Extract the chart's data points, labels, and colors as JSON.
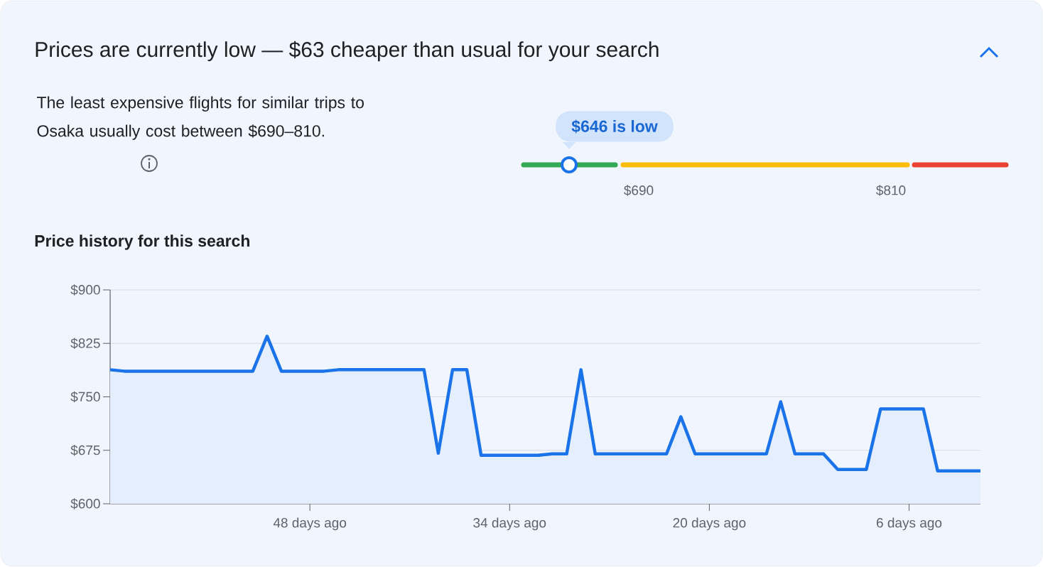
{
  "chart_data": [
    {
      "type": "other",
      "title": "Prices are currently low — $63 cheaper than usual for your search",
      "annotations": [
        "The least expensive flights for similar trips to Osaka usually cost between $690–810.",
        "$646 is low",
        "$690",
        "$810"
      ]
    },
    {
      "type": "area",
      "title": "Price history for this search",
      "color": "#1a73e8",
      "x": [
        62,
        61,
        52,
        51,
        50,
        47,
        46,
        40,
        39,
        38,
        37,
        36,
        32,
        31,
        30,
        29,
        28,
        23,
        22,
        21,
        16,
        15,
        14,
        12,
        11,
        9,
        8,
        5,
        4,
        1
      ],
      "values": [
        788,
        786,
        786,
        835,
        786,
        786,
        788,
        788,
        671,
        788,
        788,
        668,
        668,
        670,
        670,
        788,
        670,
        670,
        722,
        670,
        670,
        743,
        670,
        670,
        648,
        648,
        733,
        733,
        646,
        646
      ],
      "xlim": [
        62,
        1
      ],
      "xticks": [
        {
          "value": 48,
          "label": "48 days ago"
        },
        {
          "value": 34,
          "label": "34 days ago"
        },
        {
          "value": 20,
          "label": "20 days ago"
        },
        {
          "value": 6,
          "label": "6 days ago"
        }
      ],
      "ylim": [
        600,
        900
      ],
      "yticks": [
        {
          "value": 600,
          "label": "$600"
        },
        {
          "value": 675,
          "label": "$675"
        },
        {
          "value": 750,
          "label": "$750"
        },
        {
          "value": 825,
          "label": "$825"
        },
        {
          "value": 900,
          "label": "$900"
        }
      ],
      "grid": "y"
    }
  ]
}
